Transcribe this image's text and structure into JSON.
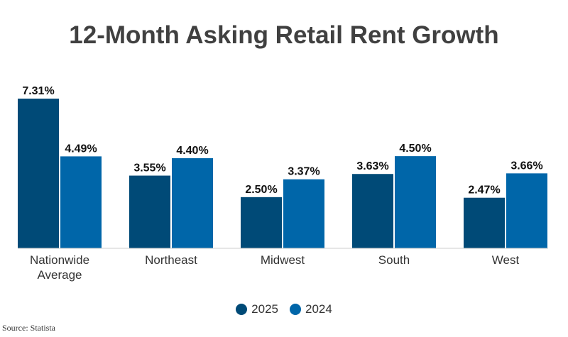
{
  "chart_data": {
    "type": "bar",
    "title": "12-Month Asking Retail Rent Growth",
    "categories": [
      [
        "Nationwide",
        "Average"
      ],
      [
        "Northeast"
      ],
      [
        "Midwest"
      ],
      [
        "South"
      ],
      [
        "West"
      ]
    ],
    "series": [
      {
        "name": "2025",
        "color": "#004a77",
        "values": [
          7.31,
          3.55,
          2.5,
          3.63,
          2.47
        ]
      },
      {
        "name": "2024",
        "color": "#0066a9",
        "values": [
          4.49,
          4.4,
          3.37,
          4.5,
          3.66
        ]
      }
    ],
    "value_suffix": "%",
    "ylim": [
      0,
      7.31
    ],
    "grid": false,
    "legend": "bottom"
  },
  "source": "Source: Statista"
}
